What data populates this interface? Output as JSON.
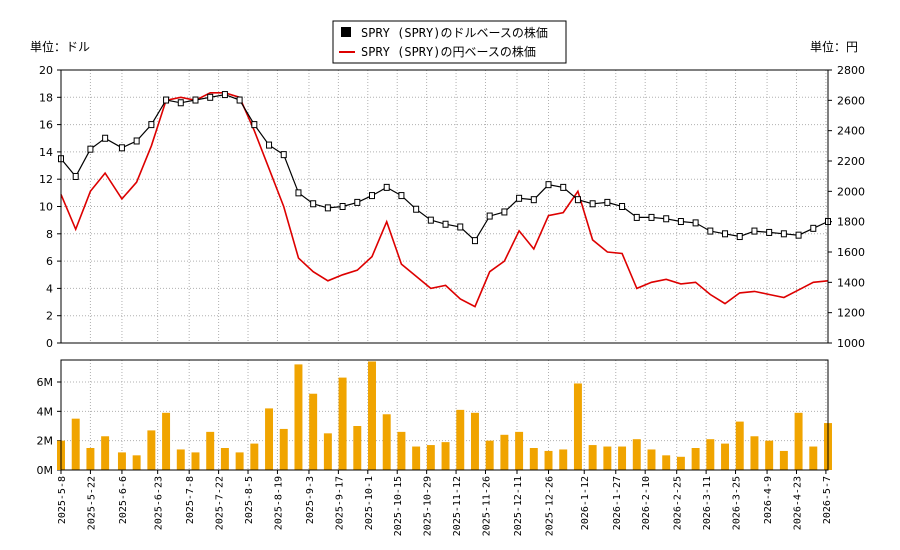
{
  "chart_data": [
    {
      "type": "candlestick",
      "ylabel_left": "単位：ドル",
      "ylabel_right": "単位：円",
      "ylim_left": [
        0,
        20
      ],
      "ylim_right": [
        1000,
        2800
      ],
      "yticks_left": [
        0,
        2,
        4,
        6,
        8,
        10,
        12,
        14,
        16,
        18,
        20
      ],
      "yticks_right": [
        1000,
        1200,
        1400,
        1600,
        1800,
        2000,
        2200,
        2400,
        2600,
        2800
      ],
      "legend": {
        "placement": "top-center",
        "entries": [
          {
            "label": "SPRY (SPRY)のドルベースの株価",
            "color": "#000000",
            "marker": "square"
          },
          {
            "label": "SPRY (SPRY)の円ベースの株価",
            "color": "#dd0000",
            "marker": "line"
          }
        ]
      },
      "grid": true,
      "series": [
        {
          "name": "SPRY (SPRY)のドルベースの株価",
          "axis": "left",
          "color": "#000000",
          "x": [
            "2025-05-08",
            "2025-05-15",
            "2025-05-22",
            "2025-05-29",
            "2025-06-06",
            "2025-06-13",
            "2025-06-20",
            "2025-06-27",
            "2025-07-04",
            "2025-07-11",
            "2025-07-18",
            "2025-07-25",
            "2025-08-01",
            "2025-08-08",
            "2025-08-15",
            "2025-08-22",
            "2025-08-29",
            "2025-09-05",
            "2025-09-12",
            "2025-09-19",
            "2025-09-26",
            "2025-10-03",
            "2025-10-10",
            "2025-10-17",
            "2025-10-24",
            "2025-10-31",
            "2025-11-07",
            "2025-11-14",
            "2025-11-21",
            "2025-11-28",
            "2025-12-05",
            "2025-12-12",
            "2025-12-19",
            "2025-12-26",
            "2026-01-02",
            "2026-01-09",
            "2026-01-16",
            "2026-01-23",
            "2026-01-30",
            "2026-02-06",
            "2026-02-13",
            "2026-02-20",
            "2026-02-27",
            "2026-03-06",
            "2026-03-13",
            "2026-03-20",
            "2026-03-27",
            "2026-04-03",
            "2026-04-10",
            "2026-04-17",
            "2026-04-24",
            "2026-05-01",
            "2026-05-08"
          ],
          "values": [
            13.5,
            12.2,
            14.2,
            15.0,
            14.3,
            14.8,
            16.0,
            17.8,
            17.6,
            17.8,
            18.0,
            18.2,
            17.8,
            16.0,
            14.5,
            13.8,
            11.0,
            10.2,
            9.9,
            10.0,
            10.3,
            10.8,
            11.4,
            10.8,
            9.8,
            9.0,
            8.7,
            8.5,
            7.5,
            9.3,
            9.6,
            10.6,
            10.5,
            11.6,
            11.4,
            10.5,
            10.2,
            10.3,
            10.0,
            9.2,
            9.2,
            9.1,
            8.9,
            8.8,
            8.2,
            8.0,
            7.8,
            8.2,
            8.1,
            8.0,
            7.9,
            8.4,
            8.9
          ]
        },
        {
          "name": "SPRY (SPRY)の円ベースの株価",
          "axis": "right",
          "color": "#dd0000",
          "x": [
            "2025-05-08",
            "2025-05-15",
            "2025-05-22",
            "2025-05-29",
            "2025-06-06",
            "2025-06-13",
            "2025-06-20",
            "2025-06-27",
            "2025-07-04",
            "2025-07-11",
            "2025-07-18",
            "2025-07-25",
            "2025-08-01",
            "2025-08-08",
            "2025-08-15",
            "2025-08-22",
            "2025-08-29",
            "2025-09-05",
            "2025-09-12",
            "2025-09-19",
            "2025-09-26",
            "2025-10-03",
            "2025-10-10",
            "2025-10-17",
            "2025-10-24",
            "2025-10-31",
            "2025-11-07",
            "2025-11-14",
            "2025-11-21",
            "2025-11-28",
            "2025-12-05",
            "2025-12-12",
            "2025-12-19",
            "2025-12-26",
            "2026-01-02",
            "2026-01-09",
            "2026-01-16",
            "2026-01-23",
            "2026-01-30",
            "2026-02-06",
            "2026-02-13",
            "2026-02-20",
            "2026-02-27",
            "2026-03-06",
            "2026-03-13",
            "2026-03-20",
            "2026-03-27",
            "2026-04-03",
            "2026-04-10",
            "2026-04-17",
            "2026-04-24",
            "2026-05-01",
            "2026-05-08"
          ],
          "values": [
            1980,
            1750,
            2000,
            2120,
            1950,
            2060,
            2300,
            2600,
            2620,
            2600,
            2650,
            2650,
            2620,
            2400,
            2150,
            1900,
            1560,
            1470,
            1410,
            1450,
            1480,
            1570,
            1800,
            1520,
            1440,
            1360,
            1380,
            1290,
            1240,
            1470,
            1540,
            1740,
            1620,
            1840,
            1860,
            2000,
            1680,
            1600,
            1590,
            1360,
            1400,
            1420,
            1390,
            1400,
            1320,
            1260,
            1330,
            1340,
            1320,
            1300,
            1350,
            1400,
            1410
          ]
        }
      ]
    },
    {
      "type": "bar",
      "ylim": [
        0,
        7500000
      ],
      "yticks": [
        0,
        2000000,
        4000000,
        6000000
      ],
      "ytick_labels": [
        "0M",
        "2M",
        "4M",
        "6M"
      ],
      "color": "#f0a400",
      "grid": true,
      "xtick_labels": [
        "2025-5-8",
        "2025-5-22",
        "2025-6-6",
        "2025-6-23",
        "2025-7-8",
        "2025-7-22",
        "2025-8-5",
        "2025-8-19",
        "2025-9-3",
        "2025-9-17",
        "2025-10-1",
        "2025-10-15",
        "2025-10-29",
        "2025-11-12",
        "2025-11-26",
        "2025-12-11",
        "2025-12-26",
        "2026-1-12",
        "2026-1-27",
        "2026-2-10",
        "2026-2-25",
        "2026-3-11",
        "2026-3-25",
        "2026-4-9",
        "2026-4-23",
        "2026-5-7"
      ],
      "x": [
        "2025-05-08",
        "2025-05-15",
        "2025-05-22",
        "2025-05-29",
        "2025-06-06",
        "2025-06-13",
        "2025-06-20",
        "2025-06-27",
        "2025-07-04",
        "2025-07-11",
        "2025-07-18",
        "2025-07-25",
        "2025-08-01",
        "2025-08-08",
        "2025-08-15",
        "2025-08-22",
        "2025-08-29",
        "2025-09-05",
        "2025-09-12",
        "2025-09-19",
        "2025-09-26",
        "2025-10-03",
        "2025-10-10",
        "2025-10-17",
        "2025-10-24",
        "2025-10-31",
        "2025-11-07",
        "2025-11-14",
        "2025-11-21",
        "2025-11-28",
        "2025-12-05",
        "2025-12-12",
        "2025-12-19",
        "2025-12-26",
        "2026-01-02",
        "2026-01-09",
        "2026-01-16",
        "2026-01-23",
        "2026-01-30",
        "2026-02-06",
        "2026-02-13",
        "2026-02-20",
        "2026-02-27",
        "2026-03-06",
        "2026-03-13",
        "2026-03-20",
        "2026-03-27",
        "2026-04-03",
        "2026-04-10",
        "2026-04-17",
        "2026-04-24",
        "2026-05-01",
        "2026-05-08"
      ],
      "values": [
        2000000,
        3500000,
        1500000,
        2300000,
        1200000,
        1000000,
        2700000,
        3900000,
        1400000,
        1200000,
        2600000,
        1500000,
        1200000,
        1800000,
        4200000,
        2800000,
        7200000,
        5200000,
        2500000,
        6300000,
        3000000,
        7400000,
        3800000,
        2600000,
        1600000,
        1700000,
        1900000,
        4100000,
        3900000,
        2000000,
        2400000,
        2600000,
        1500000,
        1300000,
        1400000,
        5900000,
        1700000,
        1600000,
        1600000,
        2100000,
        1400000,
        1000000,
        900000,
        1500000,
        2100000,
        1800000,
        3300000,
        2300000,
        2000000,
        1300000,
        3900000,
        1600000,
        3200000
      ]
    }
  ]
}
